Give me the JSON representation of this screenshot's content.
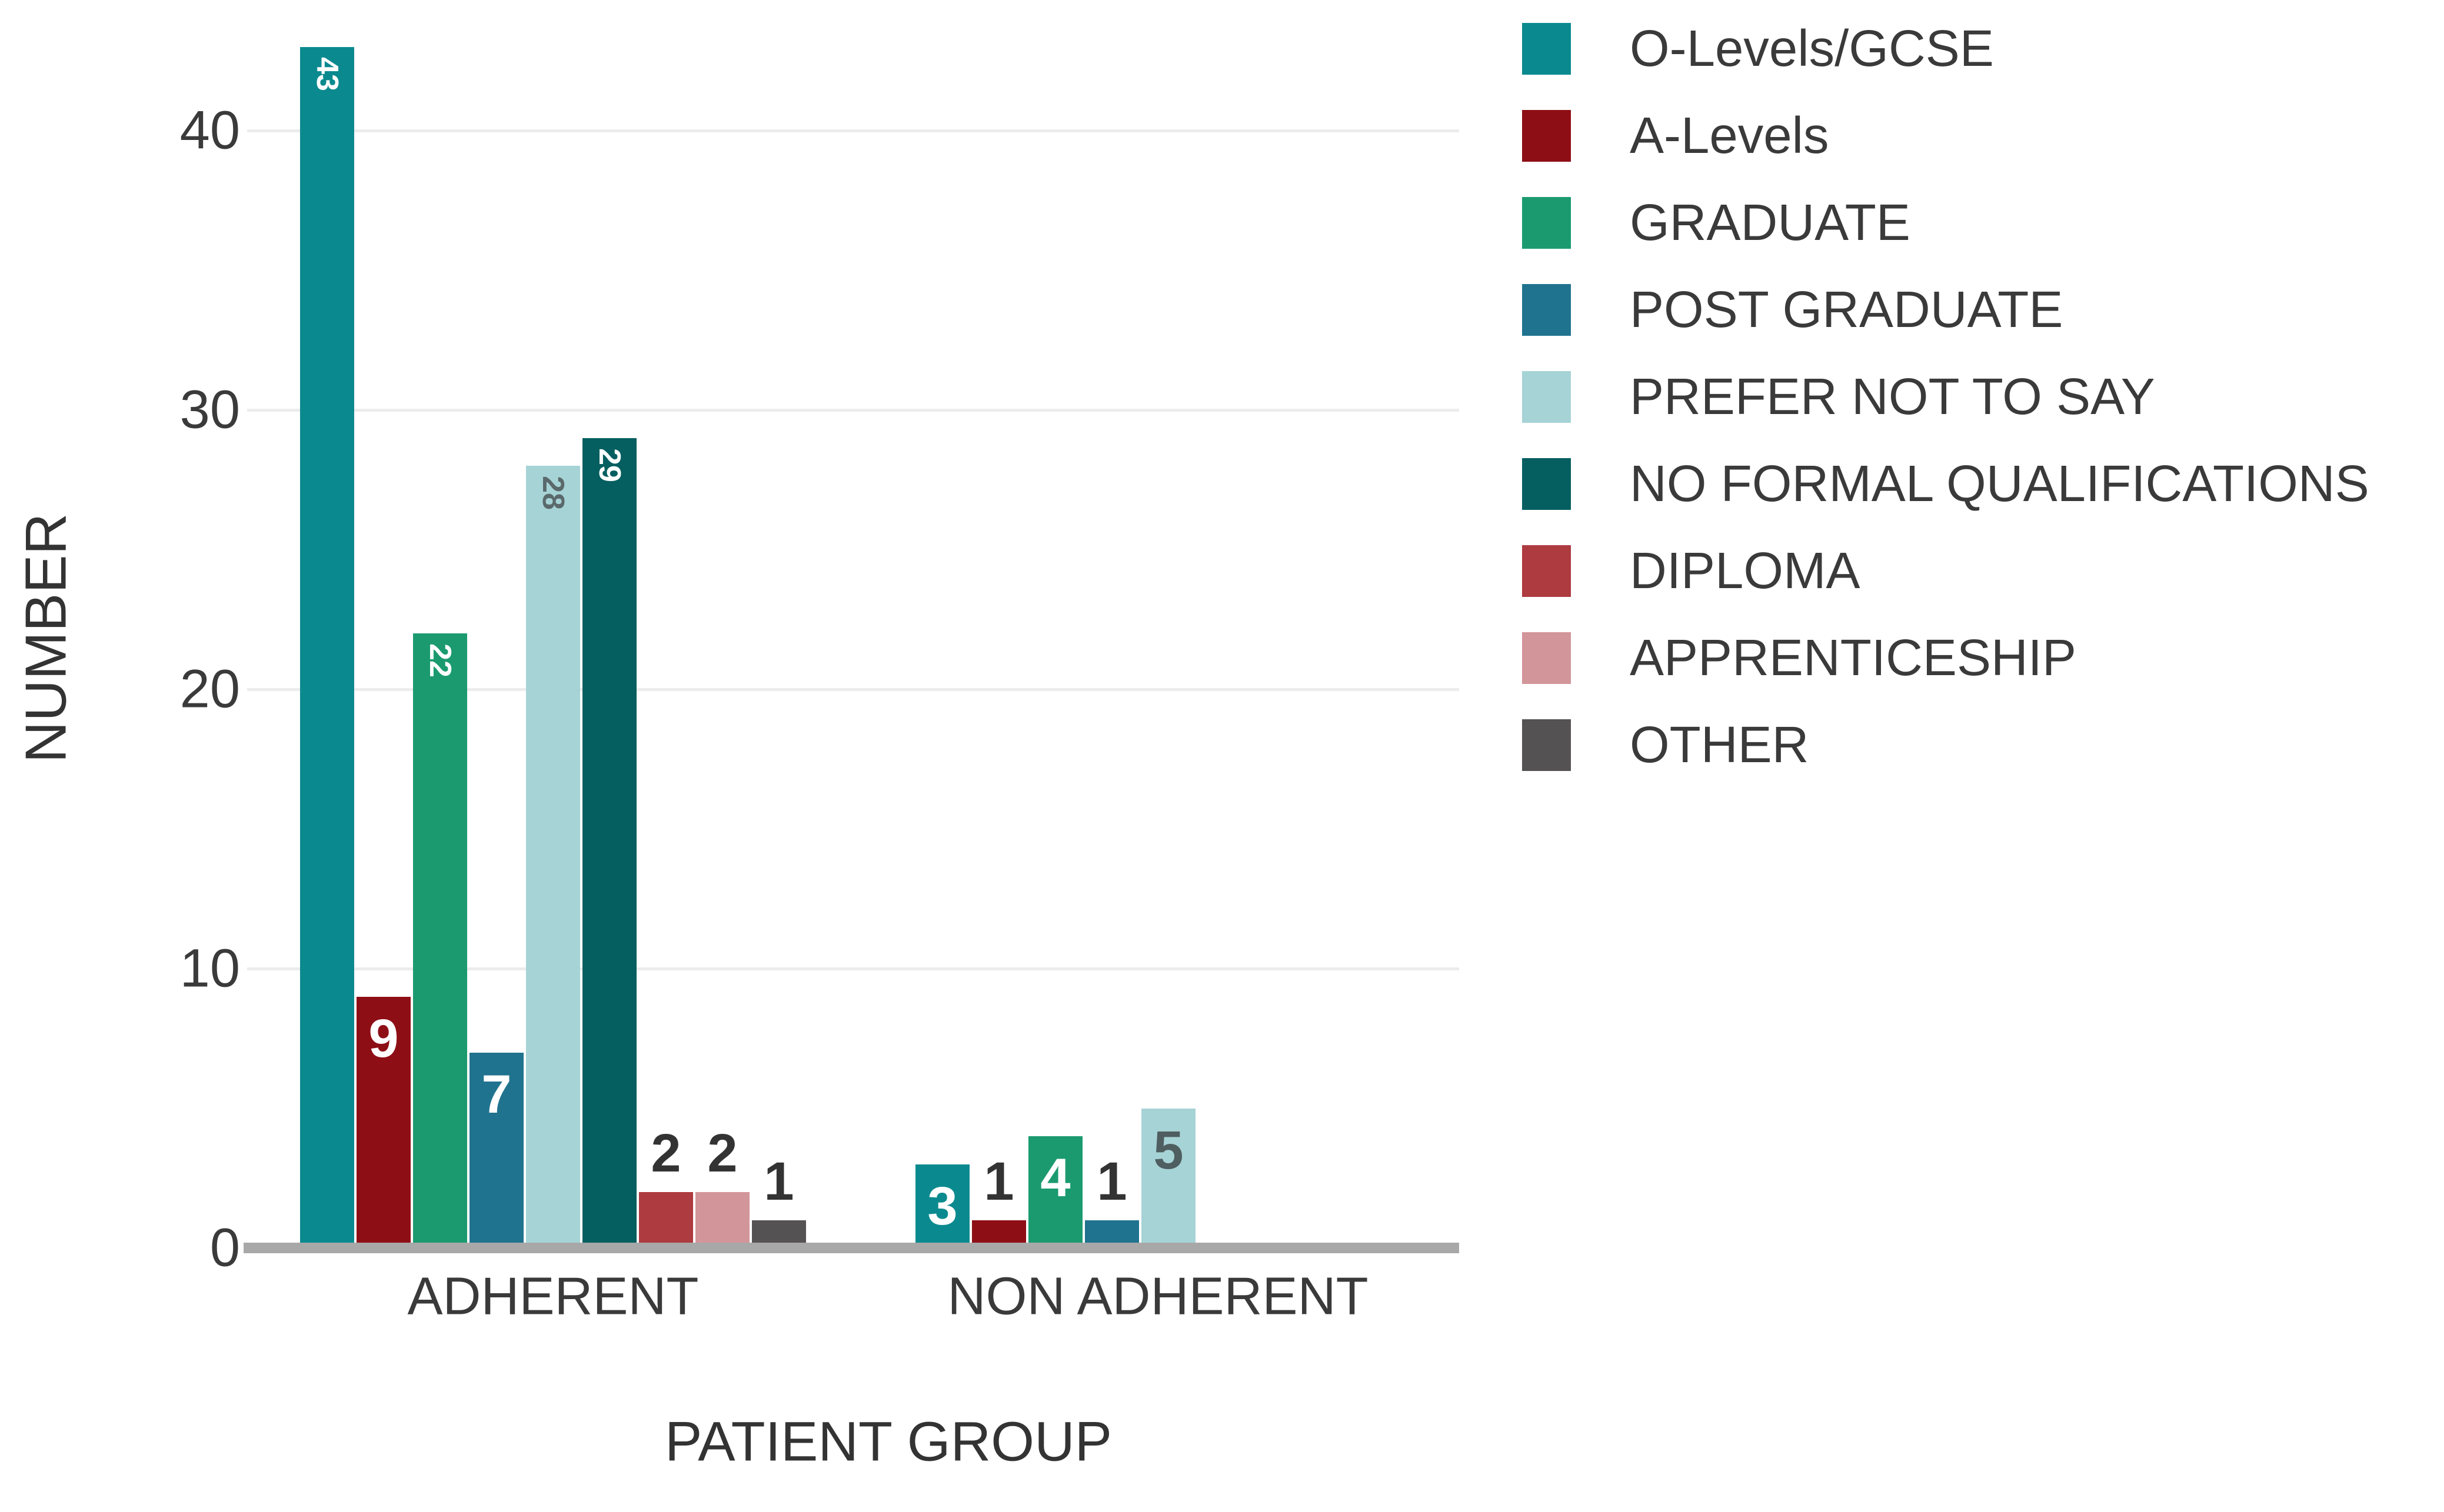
{
  "chart_data": {
    "type": "bar",
    "title": "",
    "xlabel": "PATIENT GROUP",
    "ylabel": "NUMBER",
    "categories": [
      "ADHERENT",
      "NON ADHERENT"
    ],
    "yticks": [
      "0",
      "10",
      "20",
      "30",
      "40"
    ],
    "ytick_values": [
      0,
      10,
      20,
      30,
      40
    ],
    "ylim": [
      0,
      44.7
    ],
    "grid": true,
    "legend_position": "right",
    "series": [
      {
        "name": "O-Levels/GCSE",
        "color": "#0a8a8f",
        "values": [
          43,
          3
        ],
        "labels": [
          {
            "text": "43",
            "placement": "inside",
            "rotated": true,
            "color": "#ffffff"
          },
          {
            "text": "3",
            "placement": "inside",
            "rotated": false,
            "color": "#ffffff"
          }
        ]
      },
      {
        "name": "A-Levels",
        "color": "#8e0e15",
        "values": [
          9,
          1
        ],
        "labels": [
          {
            "text": "9",
            "placement": "inside",
            "rotated": false,
            "color": "#ffffff"
          },
          {
            "text": "1",
            "placement": "above",
            "rotated": false,
            "color": "#333333"
          }
        ]
      },
      {
        "name": "GRADUATE",
        "color": "#1b9a70",
        "values": [
          22,
          4
        ],
        "labels": [
          {
            "text": "22",
            "placement": "inside",
            "rotated": true,
            "color": "#ffffff"
          },
          {
            "text": "4",
            "placement": "inside",
            "rotated": false,
            "color": "#ffffff"
          }
        ]
      },
      {
        "name": "POST GRADUATE",
        "color": "#20738f",
        "values": [
          7,
          1
        ],
        "labels": [
          {
            "text": "7",
            "placement": "inside",
            "rotated": false,
            "color": "#ffffff"
          },
          {
            "text": "1",
            "placement": "above",
            "rotated": false,
            "color": "#333333"
          }
        ]
      },
      {
        "name": "PREFER NOT TO SAY",
        "color": "#a6d3d6",
        "values": [
          28,
          5
        ],
        "labels": [
          {
            "text": "28",
            "placement": "inside",
            "rotated": true,
            "color": "#5a696b"
          },
          {
            "text": "5",
            "placement": "inside",
            "rotated": false,
            "color": "#4f5e60"
          }
        ]
      },
      {
        "name": "NO FORMAL QUALIFICATIONS",
        "color": "#055e5f",
        "values": [
          29,
          0
        ],
        "labels": [
          {
            "text": "29",
            "placement": "inside",
            "rotated": true,
            "color": "#ffffff"
          },
          null
        ]
      },
      {
        "name": "DIPLOMA",
        "color": "#ad3b40",
        "values": [
          2,
          0
        ],
        "labels": [
          {
            "text": "2",
            "placement": "above",
            "rotated": false,
            "color": "#333333"
          },
          null
        ]
      },
      {
        "name": "APPRENTICESHIP",
        "color": "#d29599",
        "values": [
          2,
          0
        ],
        "labels": [
          {
            "text": "2",
            "placement": "above",
            "rotated": false,
            "color": "#333333"
          },
          null
        ]
      },
      {
        "name": "OTHER",
        "color": "#555254",
        "values": [
          1,
          0
        ],
        "labels": [
          {
            "text": "1",
            "placement": "above",
            "rotated": false,
            "color": "#333333"
          },
          null
        ]
      }
    ]
  },
  "theme": {
    "background": "#ffffff",
    "axis_line_color": "#a8a8a8",
    "gridline_color": "#ececec",
    "text_color": "#3a3a3a"
  }
}
